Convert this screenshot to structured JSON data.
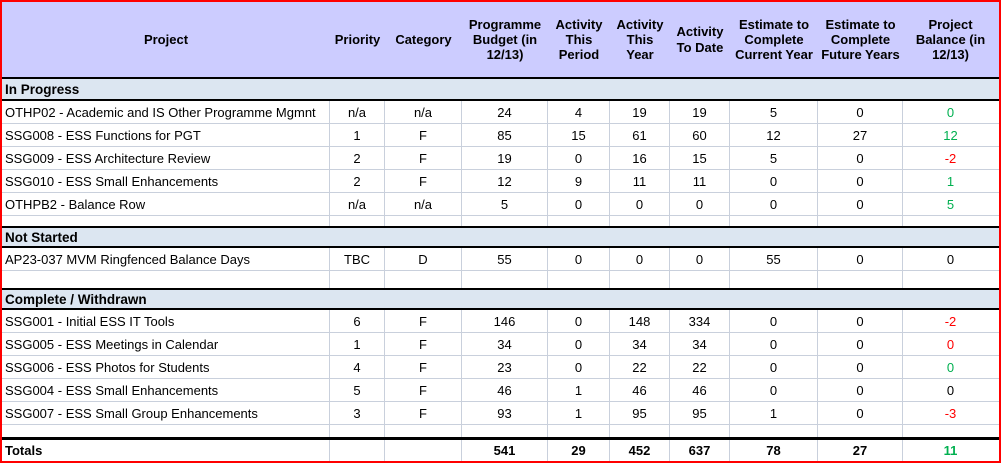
{
  "colors": {
    "frame_border": "#ff0000",
    "header_bg": "#ccccff",
    "section_band_bg": "#dce6f1",
    "gridline": "#c9d0dc",
    "positive_balance": "#00b050",
    "negative_balance": "#ff0000"
  },
  "columns": [
    {
      "id": "project",
      "label": "Project"
    },
    {
      "id": "priority",
      "label": "Priority"
    },
    {
      "id": "category",
      "label": "Category"
    },
    {
      "id": "budget",
      "label": "Programme Budget (in 12/13)"
    },
    {
      "id": "act_period",
      "label": "Activity This Period"
    },
    {
      "id": "act_year",
      "label": "Activity This Year"
    },
    {
      "id": "act_to_date",
      "label": "Activity To Date"
    },
    {
      "id": "est_current",
      "label": "Estimate to Complete Current Year"
    },
    {
      "id": "est_future",
      "label": "Estimate to Complete Future Years"
    },
    {
      "id": "balance",
      "label": "Project Balance (in 12/13)"
    }
  ],
  "sections": [
    {
      "title": "In Progress",
      "rows": [
        {
          "project": "OTHP02 - Academic and IS Other Programme Mgmnt",
          "priority": "n/a",
          "category": "n/a",
          "budget": "24",
          "act_period": "4",
          "act_year": "19",
          "act_to_date": "19",
          "est_current": "5",
          "est_future": "0",
          "balance": "0",
          "balance_color": "green"
        },
        {
          "project": "SSG008 - ESS Functions for PGT",
          "priority": "1",
          "category": "F",
          "budget": "85",
          "act_period": "15",
          "act_year": "61",
          "act_to_date": "60",
          "est_current": "12",
          "est_future": "27",
          "balance": "12",
          "balance_color": "green"
        },
        {
          "project": "SSG009 - ESS Architecture Review",
          "priority": "2",
          "category": "F",
          "budget": "19",
          "act_period": "0",
          "act_year": "16",
          "act_to_date": "15",
          "est_current": "5",
          "est_future": "0",
          "balance": "-2",
          "balance_color": "red"
        },
        {
          "project": "SSG010 - ESS Small Enhancements",
          "priority": "2",
          "category": "F",
          "budget": "12",
          "act_period": "9",
          "act_year": "11",
          "act_to_date": "11",
          "est_current": "0",
          "est_future": "0",
          "balance": "1",
          "balance_color": "green"
        },
        {
          "project": "OTHPB2 - Balance Row",
          "priority": "n/a",
          "category": "n/a",
          "budget": "5",
          "act_period": "0",
          "act_year": "0",
          "act_to_date": "0",
          "est_current": "0",
          "est_future": "0",
          "balance": "5",
          "balance_color": "green"
        }
      ]
    },
    {
      "title": "Not Started",
      "rows": [
        {
          "project": "AP23-037 MVM Ringfenced Balance Days",
          "priority": "TBC",
          "category": "D",
          "budget": "55",
          "act_period": "0",
          "act_year": "0",
          "act_to_date": "0",
          "est_current": "55",
          "est_future": "0",
          "balance": "0",
          "balance_color": "black"
        }
      ]
    },
    {
      "title": "Complete / Withdrawn",
      "rows": [
        {
          "project": "SSG001 - Initial ESS IT Tools",
          "priority": "6",
          "category": "F",
          "budget": "146",
          "act_period": "0",
          "act_year": "148",
          "act_to_date": "334",
          "est_current": "0",
          "est_future": "0",
          "balance": "-2",
          "balance_color": "red"
        },
        {
          "project": "SSG005 - ESS Meetings in Calendar",
          "priority": "1",
          "category": "F",
          "budget": "34",
          "act_period": "0",
          "act_year": "34",
          "act_to_date": "34",
          "est_current": "0",
          "est_future": "0",
          "balance": "0",
          "balance_color": "red"
        },
        {
          "project": "SSG006 - ESS Photos for Students",
          "priority": "4",
          "category": "F",
          "budget": "23",
          "act_period": "0",
          "act_year": "22",
          "act_to_date": "22",
          "est_current": "0",
          "est_future": "0",
          "balance": "0",
          "balance_color": "green"
        },
        {
          "project": "SSG004 - ESS Small Enhancements",
          "priority": "5",
          "category": "F",
          "budget": "46",
          "act_period": "1",
          "act_year": "46",
          "act_to_date": "46",
          "est_current": "0",
          "est_future": "0",
          "balance": "0",
          "balance_color": "black"
        },
        {
          "project": "SSG007 - ESS Small Group Enhancements",
          "priority": "3",
          "category": "F",
          "budget": "93",
          "act_period": "1",
          "act_year": "95",
          "act_to_date": "95",
          "est_current": "1",
          "est_future": "0",
          "balance": "-3",
          "balance_color": "red"
        }
      ]
    }
  ],
  "totals": {
    "label": "Totals",
    "priority": "",
    "category": "",
    "budget": "541",
    "act_period": "29",
    "act_year": "452",
    "act_to_date": "637",
    "est_current": "78",
    "est_future": "27",
    "balance": "11",
    "balance_color": "green"
  }
}
